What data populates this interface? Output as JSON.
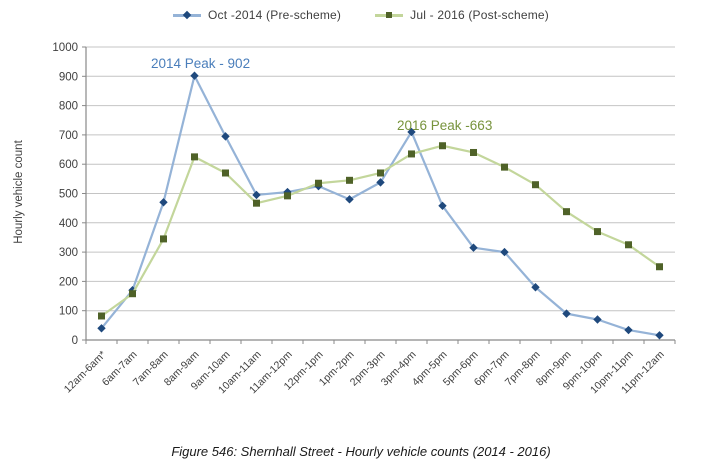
{
  "legend": {
    "items": [
      {
        "label": "Oct -2014 (Pre-scheme)",
        "marker": "diamond"
      },
      {
        "label": "Jul - 2016 (Post-scheme)",
        "marker": "square"
      }
    ]
  },
  "axes": {
    "ylabel": "Hourly vehicle count"
  },
  "annotations": {
    "peak2014": {
      "text": "2014 Peak - 902",
      "color": "#4A7EBB"
    },
    "peak2016": {
      "text": "2016 Peak -663",
      "color": "#77933C"
    }
  },
  "caption": "Figure 546: Shernhall Street - Hourly vehicle counts (2014 - 2016)",
  "colors": {
    "line_2014": "#95B3D7",
    "marker_2014": "#1F497D",
    "line_2016": "#C3D69B",
    "marker_2016": "#4F6228",
    "gridline": "#C4C4C4",
    "axis": "#898989",
    "tick_text": "#3f3f3f"
  },
  "chart_data": {
    "type": "line",
    "title": "",
    "categories": [
      "12am-6am*",
      "6am-7am",
      "7am-8am",
      "8am-9am",
      "9am-10am",
      "10am-11am",
      "11am-12pm",
      "12pm-1pm",
      "1pm-2pm",
      "2pm-3pm",
      "3pm-4pm",
      "4pm-5pm",
      "5pm-6pm",
      "6pm-7pm",
      "7pm-8pm",
      "8pm-9pm",
      "9pm-10pm",
      "10pm-11pm",
      "11pm-12am"
    ],
    "series": [
      {
        "name": "Oct -2014 (Pre-scheme)",
        "marker": "diamond",
        "line_color": "#95B3D7",
        "marker_color": "#1F497D",
        "values": [
          40,
          170,
          470,
          902,
          695,
          495,
          505,
          525,
          480,
          538,
          710,
          458,
          315,
          300,
          180,
          90,
          70,
          34,
          16
        ]
      },
      {
        "name": "Jul - 2016 (Post-scheme)",
        "marker": "square",
        "line_color": "#C3D69B",
        "marker_color": "#4F6228",
        "values": [
          82,
          158,
          345,
          625,
          570,
          467,
          492,
          535,
          545,
          570,
          635,
          663,
          640,
          590,
          530,
          438,
          370,
          325,
          250
        ]
      }
    ],
    "xlabel": "",
    "ylabel": "Hourly vehicle count",
    "ylim": [
      0,
      1000
    ],
    "ytick_step": 100,
    "grid": true,
    "legend_position": "top",
    "annotations": [
      {
        "text": "2014 Peak - 902",
        "category": "8am-9am",
        "value": 902
      },
      {
        "text": "2016 Peak -663",
        "category": "4pm-5pm",
        "value": 663
      }
    ]
  }
}
